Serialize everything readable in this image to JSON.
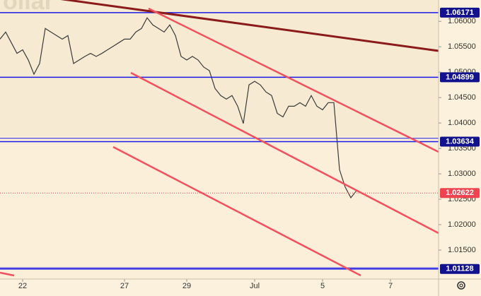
{
  "chart_data": {
    "type": "line",
    "watermark": "ollar",
    "series": [
      {
        "color": "#3a3a3a",
        "values": [
          1.0565,
          1.0579,
          1.0558,
          1.0537,
          1.0544,
          1.0524,
          1.0496,
          1.0517,
          1.0586,
          1.0579,
          1.0572,
          1.0565,
          1.0572,
          1.0517,
          1.0524,
          1.0531,
          1.0537,
          1.0531,
          1.0537,
          1.0544,
          1.0551,
          1.0558,
          1.0565,
          1.0565,
          1.0579,
          1.0586,
          1.0607,
          1.0593,
          1.0586,
          1.0579,
          1.0593,
          1.0572,
          1.0531,
          1.0524,
          1.0531,
          1.0524,
          1.051,
          1.0503,
          1.0468,
          1.0454,
          1.0447,
          1.0454,
          1.0433,
          1.0399,
          1.0475,
          1.0482,
          1.0475,
          1.0461,
          1.0454,
          1.0419,
          1.0412,
          1.0433,
          1.0433,
          1.044,
          1.0433,
          1.0454,
          1.0433,
          1.0426,
          1.044,
          1.044,
          1.0308,
          1.0274,
          1.0253,
          1.0267,
          1.0262
        ]
      }
    ],
    "xlim": [
      0,
      77.5
    ],
    "xticks": [
      {
        "value": 4,
        "label": "22"
      },
      {
        "value": 22,
        "label": "27"
      },
      {
        "value": 33,
        "label": "29"
      },
      {
        "value": 45,
        "label": "Jul"
      },
      {
        "value": 57,
        "label": "5"
      },
      {
        "value": 69,
        "label": "7"
      }
    ],
    "ylim": [
      1.0093,
      1.0642
    ],
    "yticks": [
      {
        "value": 1.06,
        "label": "1.06000"
      },
      {
        "value": 1.055,
        "label": "1.05500"
      },
      {
        "value": 1.05,
        "label": "1.05000"
      },
      {
        "value": 1.045,
        "label": "1.04500"
      },
      {
        "value": 1.04,
        "label": "1.04000"
      },
      {
        "value": 1.035,
        "label": "1.03500"
      },
      {
        "value": 1.03,
        "label": "1.03000"
      },
      {
        "value": 1.025,
        "label": "1.02500"
      },
      {
        "value": 1.02,
        "label": "1.02000"
      },
      {
        "value": 1.015,
        "label": "1.01500"
      }
    ],
    "levels": [
      {
        "value": 1.06171,
        "label": "1.06171"
      },
      {
        "value": 1.04899,
        "label": "1.04899"
      },
      {
        "value": 1.03634,
        "label": "1.03634"
      },
      {
        "value": 1.01128,
        "label": "1.01128"
      }
    ],
    "level_color": "#1a1ae6",
    "extra_levels": [
      1.037,
      1.0115
    ],
    "current_price": {
      "value": 1.02622,
      "label": "1.02622"
    },
    "current_color": "#f0434f"
  }
}
